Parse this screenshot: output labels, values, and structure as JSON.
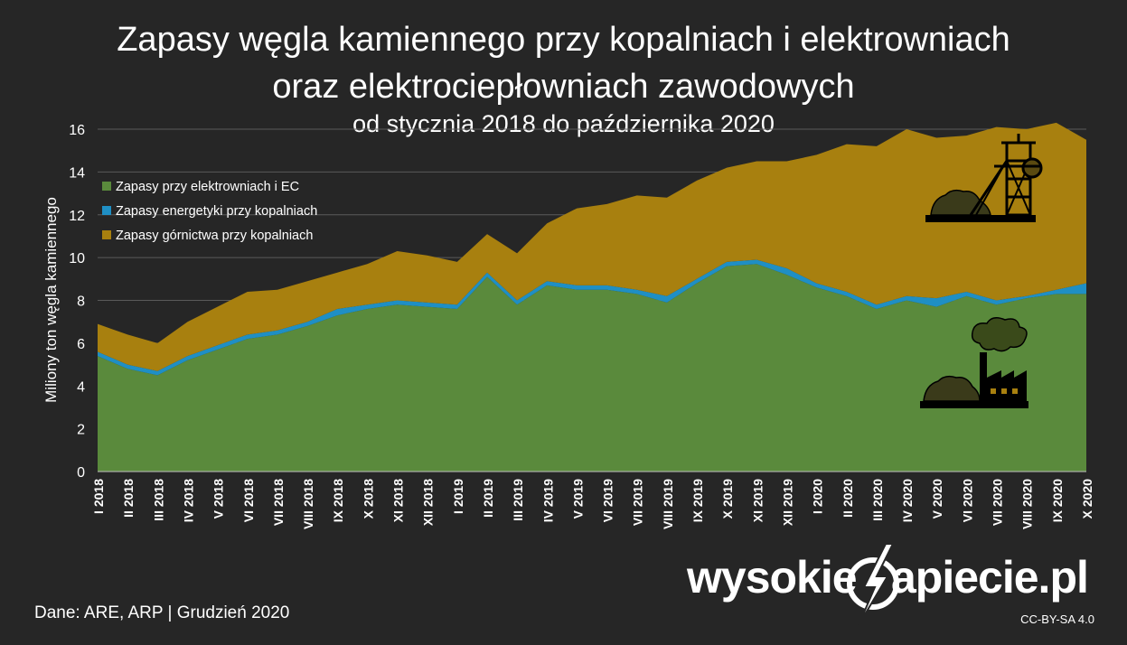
{
  "title_line1": "Zapasy węgla kamiennego przy kopalniach i elektrowniach",
  "title_line2": "oraz elektrociepłowniach zawodowych",
  "subtitle": "od stycznia 2018 do października 2020",
  "footer": {
    "source": "Dane: ARE, ARP   |  Grudzień 2020",
    "license": "CC-BY-SA 4.0",
    "logo_left": "wysokie",
    "logo_right": "apiecie.pl"
  },
  "colors": {
    "elektrownie": "#5a8a3c",
    "energetyka": "#1f8fc4",
    "gornictwo": "#a8800f",
    "background": "#262626",
    "grid": "#5a5a5a"
  },
  "icons": [
    "mine-shaft-icon",
    "power-plant-icon",
    "lightning-logo-icon"
  ],
  "chart_data": {
    "type": "area",
    "stacked": true,
    "ylabel": "Miliony ton węgla kamiennego",
    "ylim": [
      0,
      16
    ],
    "yticks": [
      0,
      2,
      4,
      6,
      8,
      10,
      12,
      14,
      16
    ],
    "grid": true,
    "legend_position": "top-left",
    "categories": [
      "I 2018",
      "II 2018",
      "III 2018",
      "IV 2018",
      "V 2018",
      "VI 2018",
      "VII 2018",
      "VIII 2018",
      "IX 2018",
      "X 2018",
      "XI 2018",
      "XII 2018",
      "I 2019",
      "II 2019",
      "III 2019",
      "IV 2019",
      "V 2019",
      "VI 2019",
      "VII 2019",
      "VIII 2019",
      "IX 2019",
      "X 2019",
      "XI 2019",
      "XII 2019",
      "I 2020",
      "II 2020",
      "III 2020",
      "IV 2020",
      "V 2020",
      "VI 2020",
      "VII 2020",
      "VIII 2020",
      "IX 2020",
      "X 2020"
    ],
    "series": [
      {
        "name": "Zapasy przy elektrowniach i EC",
        "values": [
          5.4,
          4.8,
          4.5,
          5.2,
          5.7,
          6.2,
          6.4,
          6.8,
          7.3,
          7.6,
          7.8,
          7.7,
          7.6,
          9.1,
          7.8,
          8.7,
          8.5,
          8.5,
          8.3,
          7.9,
          8.8,
          9.6,
          9.7,
          9.2,
          8.6,
          8.2,
          7.6,
          8.0,
          7.7,
          8.2,
          7.8,
          8.1,
          8.3,
          8.3
        ]
      },
      {
        "name": "Zapasy energetyki przy kopalniach",
        "values": [
          0.2,
          0.2,
          0.2,
          0.2,
          0.2,
          0.2,
          0.2,
          0.2,
          0.3,
          0.2,
          0.2,
          0.2,
          0.2,
          0.2,
          0.2,
          0.2,
          0.2,
          0.2,
          0.2,
          0.3,
          0.2,
          0.2,
          0.2,
          0.3,
          0.2,
          0.2,
          0.2,
          0.2,
          0.4,
          0.2,
          0.2,
          0.1,
          0.2,
          0.5
        ]
      },
      {
        "name": "Zapasy górnictwa przy kopalniach",
        "values": [
          1.3,
          1.4,
          1.3,
          1.6,
          1.8,
          2.0,
          1.9,
          1.9,
          1.7,
          1.9,
          2.3,
          2.2,
          2.0,
          1.8,
          2.2,
          2.7,
          3.6,
          3.8,
          4.4,
          4.6,
          4.6,
          4.4,
          4.6,
          5.0,
          6.0,
          6.9,
          7.4,
          7.8,
          7.5,
          7.3,
          8.1,
          7.8,
          7.8,
          6.7
        ]
      }
    ]
  }
}
